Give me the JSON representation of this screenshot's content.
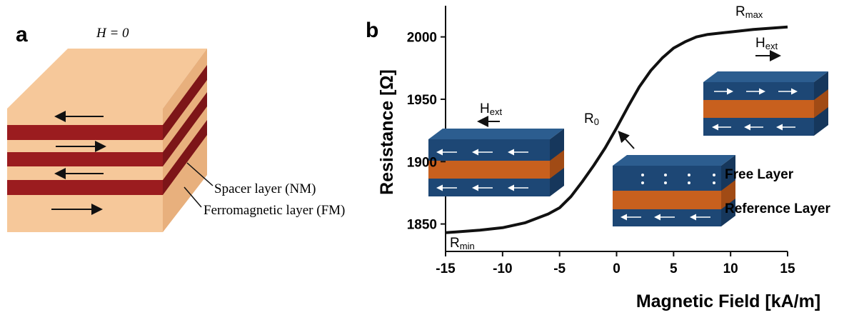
{
  "diagram": {
    "panel_label": "a",
    "field_label": "H = 0",
    "spacer_label": "Spacer layer (NM)",
    "ferro_label": "Ferromagnetic layer (FM)"
  },
  "chart_data": {
    "type": "line",
    "panel_label": "b",
    "x_label": "Magnetic Field [kA/m]",
    "y_label": "Resistance [Ω]",
    "x": [
      -15,
      -12,
      -10,
      -8,
      -6,
      -5,
      -4,
      -3,
      -2,
      -1,
      0,
      1,
      2,
      3,
      4,
      5,
      6,
      7,
      8,
      10,
      12,
      15
    ],
    "values": [
      1843,
      1845,
      1847,
      1851,
      1858,
      1863,
      1872,
      1884,
      1897,
      1911,
      1927,
      1944,
      1960,
      1973,
      1983,
      1991,
      1996,
      2000,
      2002,
      2004,
      2006,
      2008
    ],
    "color": "#111111",
    "xlim": [
      -15,
      15
    ],
    "xticks": [
      -15,
      -10,
      -5,
      0,
      5,
      10,
      15
    ],
    "ylim": [
      1828,
      2025
    ],
    "yticks": [
      1850,
      1900,
      1950,
      2000
    ],
    "annotations": {
      "r_max": {
        "text": "R",
        "sub": "max"
      },
      "r_min": {
        "text": "R",
        "sub": "min"
      },
      "r_zero": {
        "text": "R",
        "sub": "0"
      },
      "h_ext_right": {
        "text": "H",
        "sub": "ext"
      },
      "h_ext_left": {
        "text": "H",
        "sub": "ext"
      },
      "free_layer": "Free Layer",
      "reference_layer": "Reference Layer"
    }
  }
}
